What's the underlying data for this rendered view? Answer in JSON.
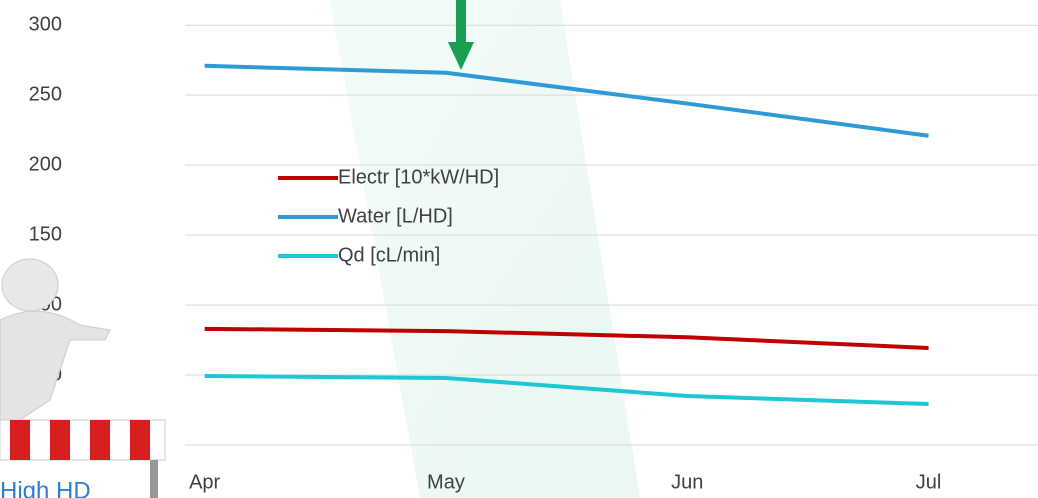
{
  "chart_data": {
    "type": "line",
    "categories": [
      "Apr",
      "May",
      "Jun",
      "Jul"
    ],
    "series": [
      {
        "name": "Electr [10*kW/HD]",
        "color": "#c00000",
        "values": [
          83,
          81.4,
          77,
          69.3
        ]
      },
      {
        "name": "Water [L/HD]",
        "color": "#2e9bd6",
        "values": [
          271,
          266,
          244,
          221
        ]
      },
      {
        "name": "Qd  [cL/min]",
        "color": "#1ec8d2",
        "values": [
          49.3,
          47.9,
          35,
          29.3
        ]
      }
    ],
    "ylim": [
      0,
      318
    ],
    "yticks": [
      0,
      50,
      100,
      150,
      200,
      250,
      300
    ],
    "grid": true,
    "annotation": "High HD"
  }
}
